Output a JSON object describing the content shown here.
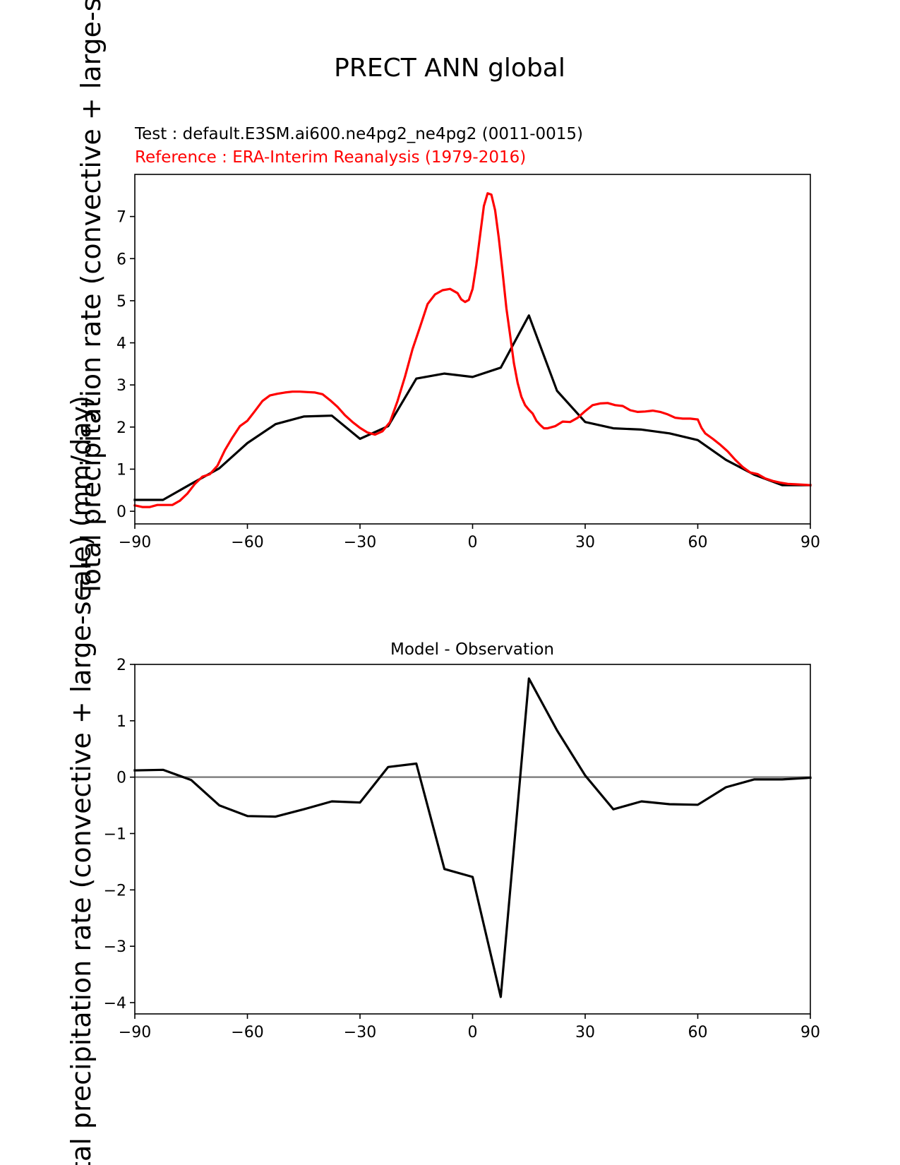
{
  "figure_title": "PRECT ANN global",
  "test_label": "Test : default.E3SM.ai600.ne4pg2_ne4pg2 (0011-0015)",
  "reference_label": "Reference : ERA-Interim Reanalysis (1979-2016)",
  "colors": {
    "test": "#000000",
    "reference": "#ff0000",
    "zero_line": "#808080",
    "axes": "#000000"
  },
  "chart_data": [
    {
      "type": "line",
      "title": "PRECT ANN global",
      "xlabel": "",
      "ylabel": "Total precipitation rate (convective + large-scale) (mm/day)",
      "xlim": [
        -90,
        90
      ],
      "ylim": [
        -0.3,
        8.0
      ],
      "xticks": [
        -90,
        -60,
        -30,
        0,
        30,
        60,
        90
      ],
      "xtick_labels": [
        "−90",
        "−60",
        "−30",
        "0",
        "30",
        "60",
        "90"
      ],
      "yticks": [
        0,
        1,
        2,
        3,
        4,
        5,
        6,
        7
      ],
      "ytick_labels": [
        "0",
        "1",
        "2",
        "3",
        "4",
        "5",
        "6",
        "7"
      ],
      "series": [
        {
          "name": "Test : default.E3SM.ai600.ne4pg2_ne4pg2 (0011-0015)",
          "color": "#000000",
          "x": [
            -90,
            -82.5,
            -75,
            -67.5,
            -60,
            -52.5,
            -45,
            -37.5,
            -30,
            -22.5,
            -15,
            -7.5,
            0,
            7.5,
            15,
            22.5,
            30,
            37.5,
            45,
            52.5,
            60,
            67.5,
            75,
            82.5,
            90
          ],
          "y": [
            0.27,
            0.27,
            0.65,
            1.02,
            1.62,
            2.07,
            2.25,
            2.27,
            1.72,
            2.02,
            3.15,
            3.27,
            3.19,
            3.41,
            4.65,
            2.86,
            2.12,
            1.97,
            1.94,
            1.85,
            1.69,
            1.22,
            0.87,
            0.62,
            0.62
          ]
        },
        {
          "name": "Reference : ERA-Interim Reanalysis (1979-2016)",
          "color": "#ff0000",
          "x": [
            -90,
            -88,
            -86,
            -84,
            -82,
            -80,
            -78,
            -76,
            -74,
            -72,
            -70,
            -68,
            -66,
            -64,
            -62,
            -60,
            -58,
            -56,
            -54,
            -52,
            -50,
            -48,
            -46,
            -44,
            -42,
            -40,
            -38,
            -36,
            -34,
            -32,
            -30,
            -28,
            -26,
            -24,
            -22,
            -20,
            -18,
            -16,
            -14,
            -12,
            -10,
            -8,
            -6,
            -4,
            -3,
            -2,
            -1,
            0,
            1,
            2,
            3,
            4,
            5,
            6,
            7,
            8,
            9,
            10,
            11,
            12,
            13,
            14,
            15,
            16,
            17,
            18,
            19,
            20,
            22,
            24,
            26,
            28,
            30,
            32,
            34,
            36,
            38,
            40,
            42,
            44,
            46,
            48,
            50,
            52,
            54,
            56,
            58,
            60,
            61,
            62,
            64,
            66,
            68,
            70,
            72,
            74,
            76,
            78,
            80,
            82,
            84,
            86,
            88,
            90
          ],
          "y": [
            0.14,
            0.1,
            0.1,
            0.15,
            0.15,
            0.15,
            0.25,
            0.42,
            0.65,
            0.82,
            0.88,
            1.08,
            1.45,
            1.75,
            2.02,
            2.15,
            2.38,
            2.62,
            2.75,
            2.79,
            2.82,
            2.84,
            2.84,
            2.83,
            2.82,
            2.78,
            2.64,
            2.48,
            2.28,
            2.12,
            1.98,
            1.87,
            1.82,
            1.9,
            2.12,
            2.62,
            3.2,
            3.85,
            4.38,
            4.92,
            5.15,
            5.25,
            5.28,
            5.18,
            5.03,
            4.97,
            5.02,
            5.28,
            5.85,
            6.55,
            7.25,
            7.55,
            7.52,
            7.15,
            6.48,
            5.68,
            4.82,
            4.18,
            3.52,
            3.05,
            2.72,
            2.52,
            2.41,
            2.32,
            2.15,
            2.05,
            1.97,
            1.97,
            2.02,
            2.13,
            2.12,
            2.22,
            2.38,
            2.52,
            2.56,
            2.57,
            2.52,
            2.5,
            2.4,
            2.36,
            2.37,
            2.39,
            2.36,
            2.3,
            2.22,
            2.2,
            2.2,
            2.18,
            1.98,
            1.85,
            1.72,
            1.58,
            1.42,
            1.22,
            1.05,
            0.92,
            0.88,
            0.78,
            0.72,
            0.68,
            0.65,
            0.64,
            0.63,
            0.62
          ]
        }
      ]
    },
    {
      "type": "line",
      "title": "Model - Observation",
      "xlabel": "",
      "ylabel": "Total precipitation rate (convective + large-scale) (mm/day)",
      "xlim": [
        -90,
        90
      ],
      "ylim": [
        -4.2,
        2.0
      ],
      "xticks": [
        -90,
        -60,
        -30,
        0,
        30,
        60,
        90
      ],
      "xtick_labels": [
        "−90",
        "−60",
        "−30",
        "0",
        "30",
        "60",
        "90"
      ],
      "yticks": [
        -4,
        -3,
        -2,
        -1,
        0,
        1,
        2
      ],
      "ytick_labels": [
        "−4",
        "−3",
        "−2",
        "−1",
        "0",
        "1",
        "2"
      ],
      "zero_line": 0,
      "series": [
        {
          "name": "Model - Observation",
          "color": "#000000",
          "x": [
            -90,
            -82.5,
            -75,
            -67.5,
            -60,
            -52.5,
            -45,
            -37.5,
            -30,
            -22.5,
            -15,
            -7.5,
            0,
            7.5,
            15,
            22.5,
            30,
            37.5,
            45,
            52.5,
            60,
            67.5,
            75,
            82.5,
            90
          ],
          "y": [
            0.12,
            0.13,
            -0.05,
            -0.5,
            -0.69,
            -0.7,
            -0.57,
            -0.43,
            -0.45,
            0.18,
            0.24,
            -1.63,
            -1.77,
            -3.9,
            1.75,
            0.83,
            0.03,
            -0.57,
            -0.43,
            -0.48,
            -0.49,
            -0.18,
            -0.04,
            -0.04,
            -0.01
          ]
        }
      ]
    }
  ]
}
